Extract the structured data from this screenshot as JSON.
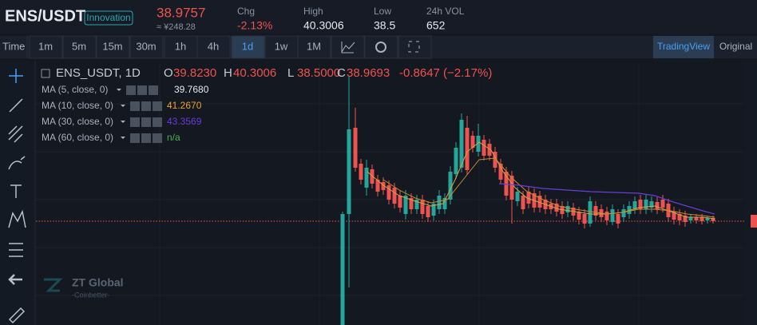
{
  "header": {
    "pair": "ENS/USDT",
    "tag": "Innovation",
    "price": "38.9757",
    "price_cny": "≈ ¥248.28",
    "stats": [
      {
        "label": "Chg",
        "value": "-2.13%"
      },
      {
        "label": "High",
        "value": "40.3006"
      },
      {
        "label": "Low",
        "value": "38.5"
      },
      {
        "label": "24h VOL",
        "value": "652"
      }
    ]
  },
  "toolbar": {
    "time_label": "Time",
    "intervals": [
      "1m",
      "5m",
      "15m",
      "30m",
      "1h",
      "4h",
      "1d",
      "1w",
      "1M"
    ],
    "views": [
      "TradingView",
      "Original"
    ]
  },
  "legend": {
    "symbol": "ENS_USDT, 1D",
    "ohlc": [
      {
        "label": "O",
        "value": "39.8230"
      },
      {
        "label": "H",
        "value": "40.3006"
      },
      {
        "label": "L",
        "value": "38.5000"
      },
      {
        "label": "C",
        "value": "38.9693"
      }
    ],
    "change": "-0.8647 (−2.17%)",
    "indicators": [
      {
        "name": "MA (5, close, 0)",
        "value": "39.7680"
      },
      {
        "name": "MA (10, close, 0)",
        "value": "41.2670"
      },
      {
        "name": "MA (30, close, 0)",
        "value": "43.3569"
      },
      {
        "name": "MA (60, close, 0)",
        "value": "n/a"
      }
    ]
  },
  "watermark": {
    "brand": "ZT Global",
    "sub": "-Coinbetter-"
  }
}
